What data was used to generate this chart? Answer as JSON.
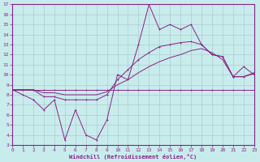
{
  "xlabel": "Windchill (Refroidissement éolien,°C)",
  "bg_color": "#c8ecec",
  "line_color": "#882288",
  "grid_color": "#aacccc",
  "x_min": 0,
  "x_max": 23,
  "y_min": 3,
  "y_max": 17,
  "x_ticks": [
    0,
    1,
    2,
    3,
    4,
    5,
    6,
    7,
    8,
    9,
    10,
    11,
    12,
    13,
    14,
    15,
    16,
    17,
    18,
    19,
    20,
    21,
    22,
    23
  ],
  "y_ticks": [
    3,
    4,
    5,
    6,
    7,
    8,
    9,
    10,
    11,
    12,
    13,
    14,
    15,
    16,
    17
  ],
  "line1_x": [
    0,
    1,
    2,
    3,
    4,
    5,
    6,
    7,
    8,
    9,
    10,
    11,
    12,
    13,
    14,
    15,
    16,
    17,
    18,
    19,
    20,
    21,
    22,
    23
  ],
  "line1_y": [
    8.5,
    8.5,
    8.5,
    8.5,
    8.5,
    8.5,
    8.5,
    8.5,
    8.5,
    8.5,
    8.5,
    8.5,
    8.5,
    8.5,
    8.5,
    8.5,
    8.5,
    8.5,
    8.5,
    8.5,
    8.5,
    8.5,
    8.5,
    8.5
  ],
  "line2_x": [
    0,
    1,
    2,
    3,
    4,
    5,
    6,
    7,
    8,
    9,
    10,
    11,
    12,
    13,
    14,
    15,
    16,
    17,
    18,
    19,
    20,
    21,
    22,
    23
  ],
  "line2_y": [
    8.5,
    8.0,
    7.5,
    6.5,
    7.5,
    3.5,
    6.5,
    4.0,
    3.5,
    5.5,
    10.0,
    9.5,
    13.0,
    17.0,
    14.5,
    15.0,
    14.5,
    15.0,
    13.0,
    12.0,
    11.8,
    9.8,
    10.8,
    10.0
  ],
  "line3_x": [
    0,
    1,
    2,
    3,
    4,
    5,
    6,
    7,
    8,
    9,
    10,
    11,
    12,
    13,
    14,
    15,
    16,
    17,
    18,
    19,
    20,
    21,
    22,
    23
  ],
  "line3_y": [
    8.5,
    8.5,
    8.5,
    7.8,
    7.8,
    7.5,
    7.5,
    7.5,
    7.5,
    8.0,
    9.5,
    10.5,
    11.5,
    12.2,
    12.8,
    13.0,
    13.2,
    13.3,
    13.0,
    12.0,
    11.8,
    9.8,
    9.8,
    10.2
  ],
  "line4_x": [
    0,
    1,
    2,
    3,
    4,
    5,
    6,
    7,
    8,
    9,
    10,
    11,
    12,
    13,
    14,
    15,
    16,
    17,
    18,
    19,
    20,
    21,
    22,
    23
  ],
  "line4_y": [
    8.5,
    8.5,
    8.5,
    8.2,
    8.2,
    8.0,
    8.0,
    8.0,
    8.0,
    8.3,
    9.0,
    9.5,
    10.2,
    10.8,
    11.3,
    11.7,
    12.0,
    12.4,
    12.6,
    12.2,
    11.5,
    9.8,
    9.8,
    10.1
  ]
}
